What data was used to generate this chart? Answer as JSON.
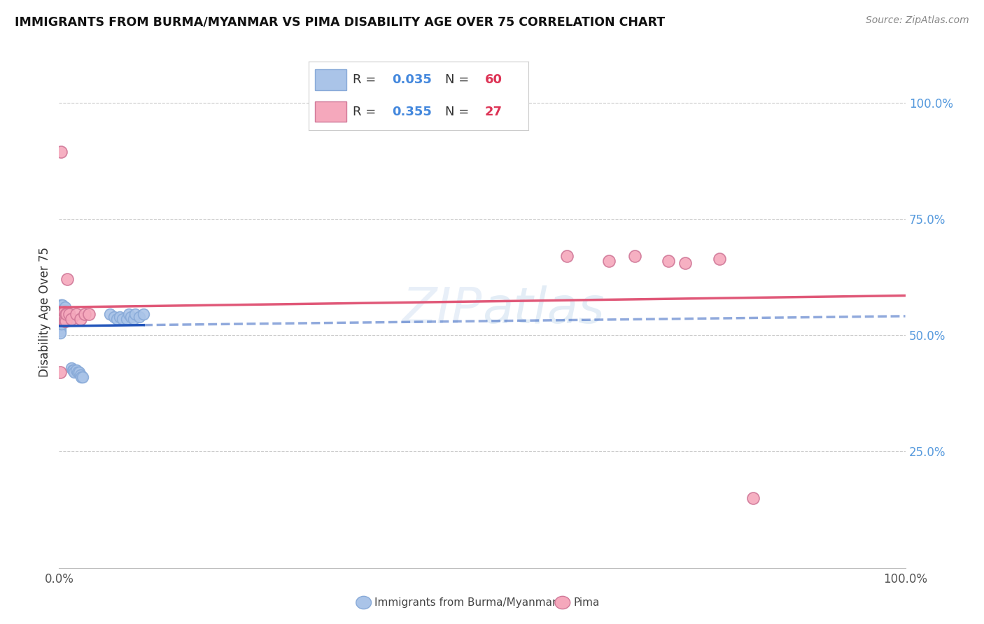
{
  "title": "IMMIGRANTS FROM BURMA/MYANMAR VS PIMA DISABILITY AGE OVER 75 CORRELATION CHART",
  "source": "Source: ZipAtlas.com",
  "ylabel": "Disability Age Over 75",
  "legend_label_blue": "Immigrants from Burma/Myanmar",
  "legend_label_pink": "Pima",
  "watermark": "ZIPatlas",
  "blue_color": "#aac4e8",
  "pink_color": "#f5a8bc",
  "blue_line_color": "#2255bb",
  "pink_line_color": "#e05878",
  "blue_x": [
    0.001,
    0.001,
    0.001,
    0.001,
    0.001,
    0.001,
    0.001,
    0.001,
    0.001,
    0.001,
    0.001,
    0.002,
    0.002,
    0.002,
    0.002,
    0.002,
    0.003,
    0.003,
    0.003,
    0.003,
    0.003,
    0.004,
    0.004,
    0.004,
    0.005,
    0.005,
    0.005,
    0.006,
    0.006,
    0.007,
    0.007,
    0.008,
    0.008,
    0.009,
    0.01,
    0.011,
    0.012,
    0.014,
    0.015,
    0.016,
    0.017,
    0.018,
    0.02,
    0.022,
    0.024,
    0.025,
    0.026,
    0.028,
    0.06,
    0.065,
    0.068,
    0.072,
    0.075,
    0.08,
    0.082,
    0.085,
    0.088,
    0.09,
    0.095,
    0.1
  ],
  "blue_y": [
    0.56,
    0.555,
    0.545,
    0.54,
    0.535,
    0.53,
    0.525,
    0.52,
    0.515,
    0.51,
    0.505,
    0.565,
    0.555,
    0.545,
    0.535,
    0.525,
    0.565,
    0.555,
    0.545,
    0.535,
    0.525,
    0.565,
    0.545,
    0.535,
    0.555,
    0.545,
    0.535,
    0.55,
    0.54,
    0.56,
    0.545,
    0.54,
    0.535,
    0.545,
    0.535,
    0.535,
    0.545,
    0.535,
    0.43,
    0.425,
    0.425,
    0.42,
    0.425,
    0.42,
    0.42,
    0.415,
    0.41,
    0.41,
    0.545,
    0.54,
    0.535,
    0.54,
    0.535,
    0.535,
    0.545,
    0.54,
    0.535,
    0.545,
    0.54,
    0.545
  ],
  "pink_x": [
    0.001,
    0.002,
    0.002,
    0.003,
    0.003,
    0.004,
    0.005,
    0.006,
    0.006,
    0.007,
    0.008,
    0.008,
    0.009,
    0.01,
    0.012,
    0.015,
    0.02,
    0.025,
    0.03,
    0.035,
    0.6,
    0.65,
    0.68,
    0.72,
    0.74,
    0.78,
    0.82
  ],
  "pink_y": [
    0.42,
    0.895,
    0.545,
    0.545,
    0.535,
    0.545,
    0.535,
    0.55,
    0.53,
    0.535,
    0.545,
    0.53,
    0.545,
    0.62,
    0.545,
    0.535,
    0.545,
    0.535,
    0.545,
    0.545,
    0.67,
    0.66,
    0.67,
    0.66,
    0.655,
    0.665,
    0.15
  ],
  "xlim": [
    0,
    1.0
  ],
  "ylim": [
    0.0,
    1.1
  ],
  "yticks": [
    0.25,
    0.5,
    0.75,
    1.0
  ],
  "ytick_labels": [
    "25.0%",
    "50.0%",
    "75.0%",
    "100.0%"
  ],
  "xtick_positions": [
    0.0,
    0.5,
    1.0
  ],
  "xtick_labels": [
    "0.0%",
    "",
    "100.0%"
  ]
}
